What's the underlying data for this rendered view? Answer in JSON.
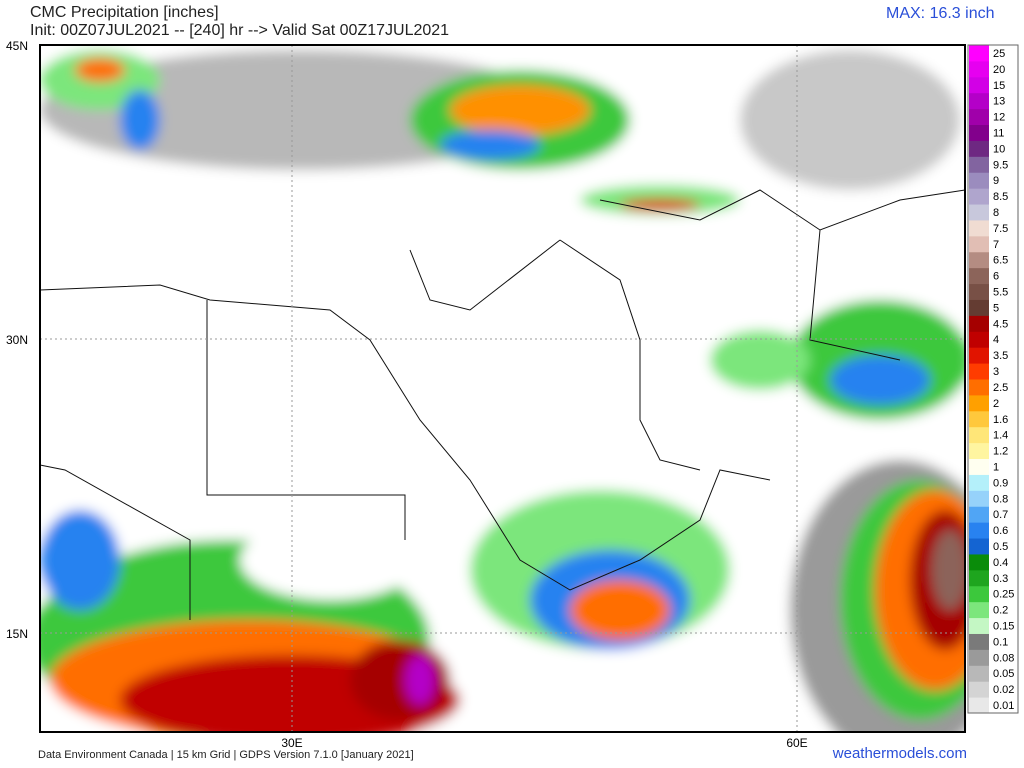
{
  "header": {
    "title": "CMC Precipitation [inches]",
    "subtitle": "Init: 00Z07JUL2021 -- [240] hr --> Valid Sat 00Z17JUL2021",
    "max": "MAX: 16.3 inch"
  },
  "axes": {
    "lat_labels": [
      "45N",
      "30N",
      "15N"
    ],
    "lon_labels": [
      "30E",
      "60E"
    ]
  },
  "footer": {
    "credit": "Data Environment Canada | 15 km Grid | GDPS Version 7.1.0 [January 2021]",
    "site": "weathermodels.com"
  },
  "legend": {
    "bins": [
      {
        "label": "0.01",
        "color": "#e8e8e8"
      },
      {
        "label": "0.02",
        "color": "#d4d4d4"
      },
      {
        "label": "0.05",
        "color": "#b8b8b8"
      },
      {
        "label": "0.08",
        "color": "#9a9a9a"
      },
      {
        "label": "0.1",
        "color": "#7a7a7a"
      },
      {
        "label": "0.15",
        "color": "#c4f7c4"
      },
      {
        "label": "0.2",
        "color": "#7ce67c"
      },
      {
        "label": "0.25",
        "color": "#3cc83c"
      },
      {
        "label": "0.3",
        "color": "#1ea51e"
      },
      {
        "label": "0.4",
        "color": "#0a8c0a"
      },
      {
        "label": "0.5",
        "color": "#1464d2"
      },
      {
        "label": "0.6",
        "color": "#2882f0"
      },
      {
        "label": "0.7",
        "color": "#50a5f5"
      },
      {
        "label": "0.8",
        "color": "#96d2fa"
      },
      {
        "label": "0.9",
        "color": "#b4f0fa"
      },
      {
        "label": "1",
        "color": "#fffff0"
      },
      {
        "label": "1.2",
        "color": "#fff5a0"
      },
      {
        "label": "1.4",
        "color": "#ffe678"
      },
      {
        "label": "1.6",
        "color": "#ffc83c"
      },
      {
        "label": "2",
        "color": "#ffa000"
      },
      {
        "label": "2.5",
        "color": "#ff6e00"
      },
      {
        "label": "3",
        "color": "#ff3c00"
      },
      {
        "label": "3.5",
        "color": "#e11400"
      },
      {
        "label": "4",
        "color": "#c00000"
      },
      {
        "label": "4.5",
        "color": "#a50000"
      },
      {
        "label": "5",
        "color": "#643c32"
      },
      {
        "label": "5.5",
        "color": "#785046"
      },
      {
        "label": "6",
        "color": "#8c645a"
      },
      {
        "label": "6.5",
        "color": "#b48c82"
      },
      {
        "label": "7",
        "color": "#e1beb4"
      },
      {
        "label": "7.5",
        "color": "#f0dcd2"
      },
      {
        "label": "8",
        "color": "#c8c8dc"
      },
      {
        "label": "8.5",
        "color": "#afa5cd"
      },
      {
        "label": "9",
        "color": "#9b8cbe"
      },
      {
        "label": "9.5",
        "color": "#8264a0"
      },
      {
        "label": "10",
        "color": "#6e2882"
      },
      {
        "label": "11",
        "color": "#82008c"
      },
      {
        "label": "12",
        "color": "#a000aa"
      },
      {
        "label": "13",
        "color": "#b400c8"
      },
      {
        "label": "15",
        "color": "#d200e6"
      },
      {
        "label": "20",
        "color": "#e600f0"
      },
      {
        "label": "25",
        "color": "#ff00ff"
      }
    ]
  }
}
